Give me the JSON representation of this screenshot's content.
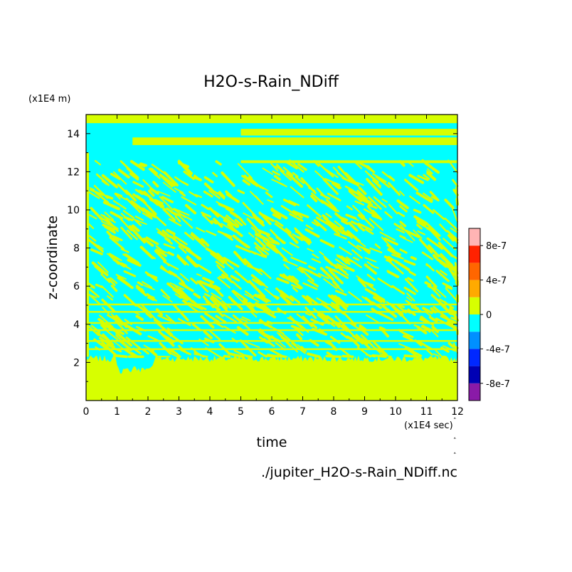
{
  "chart_data": {
    "type": "heatmap",
    "title": "H2O-s-Rain_NDiff",
    "xlabel": "time",
    "ylabel": "z-coordinate",
    "x_unit": "(x1E4 sec)",
    "y_unit": "(x1E4 m)",
    "source_file": "./jupiter_H2O-s-Rain_NDiff.nc",
    "xlim": [
      0,
      12
    ],
    "ylim": [
      0,
      15
    ],
    "x_ticks": [
      0,
      1,
      2,
      3,
      4,
      5,
      6,
      7,
      8,
      9,
      10,
      11,
      12
    ],
    "y_ticks": [
      2,
      4,
      6,
      8,
      10,
      12,
      14
    ],
    "colorbar": {
      "levels": [
        -1e-06,
        -8e-07,
        -6e-07,
        -4e-07,
        -2e-07,
        0,
        2e-07,
        4e-07,
        6e-07,
        8e-07,
        1e-06
      ],
      "colors": [
        "#8a1aa8",
        "#0000b4",
        "#0028ff",
        "#0090ff",
        "#00ffff",
        "#d7ff00",
        "#ffaa00",
        "#ff6600",
        "#ff2200",
        "#ffb4b4"
      ],
      "tick_values": [
        -8e-07,
        -4e-07,
        0,
        4e-07,
        8e-07
      ],
      "tick_labels": [
        "-8e-7",
        "-4e-7",
        "0",
        "4e-7",
        "8e-7"
      ]
    },
    "regions": {
      "lower_layer": {
        "z_range": [
          0,
          2.2
        ],
        "value_sign": "positive"
      },
      "mixed_layer": {
        "z_range": [
          2.2,
          13
        ],
        "value_sign": "alternating"
      },
      "upper_bands": {
        "z_range": [
          12.5,
          15
        ],
        "value_sign": "alternating"
      }
    },
    "grid": false,
    "legend": "colorbar-right"
  }
}
